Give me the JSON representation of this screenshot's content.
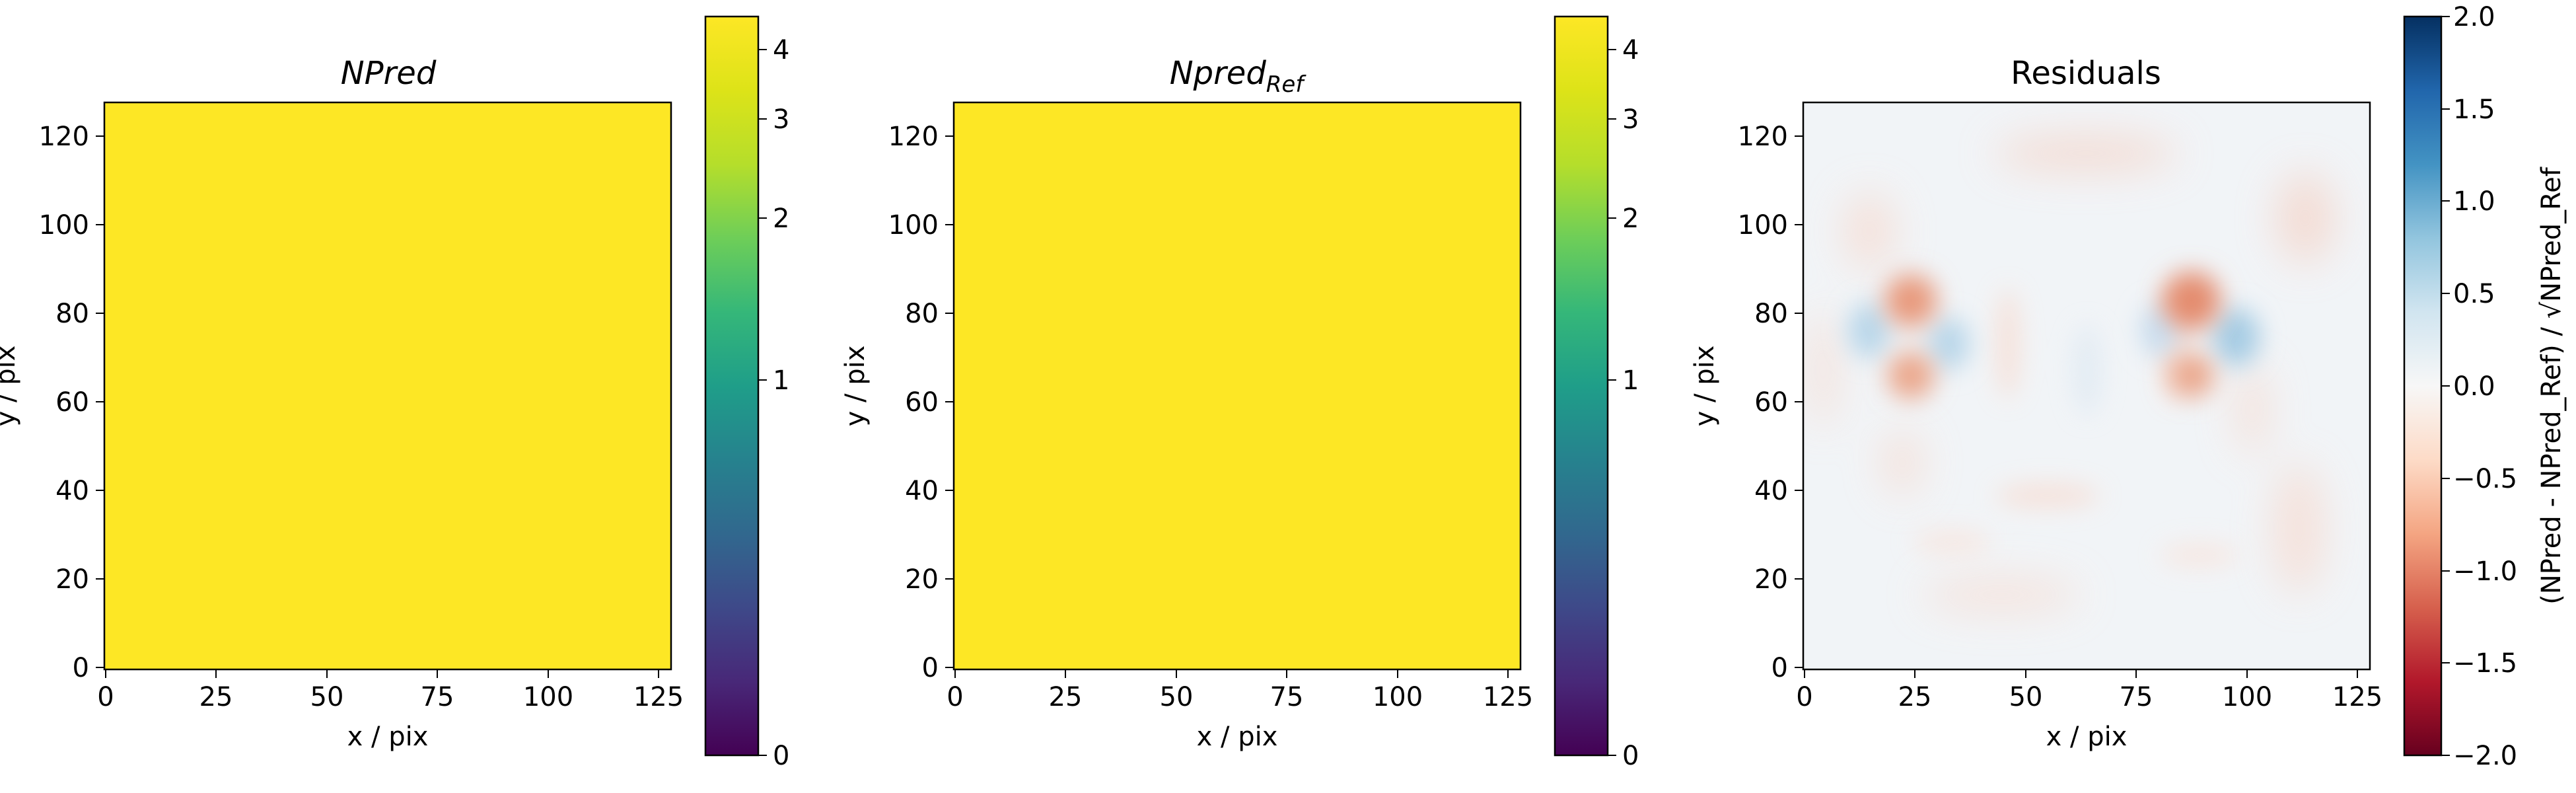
{
  "chart_data": [
    {
      "type": "heatmap",
      "title": "NPred",
      "xlabel": "x / pix",
      "ylabel": "y / pix",
      "xlim": [
        0,
        128
      ],
      "ylim": [
        0,
        128
      ],
      "xticks": [
        "0",
        "25",
        "50",
        "75",
        "100",
        "125"
      ],
      "yticks": [
        "0",
        "20",
        "40",
        "60",
        "80",
        "100",
        "120"
      ],
      "colormap": "viridis",
      "fill_color": "#fde725",
      "colorbar": {
        "ticks": [
          "0",
          "1",
          "2",
          "3",
          "4"
        ],
        "scale": "sqrt"
      }
    },
    {
      "type": "heatmap",
      "title": "Npred",
      "title_subscript": "Ref",
      "xlabel": "x / pix",
      "ylabel": "y / pix",
      "xlim": [
        0,
        128
      ],
      "ylim": [
        0,
        128
      ],
      "xticks": [
        "0",
        "25",
        "50",
        "75",
        "100",
        "125"
      ],
      "yticks": [
        "0",
        "20",
        "40",
        "60",
        "80",
        "100",
        "120"
      ],
      "colormap": "viridis",
      "fill_color": "#fde725",
      "colorbar": {
        "ticks": [
          "0",
          "1",
          "2",
          "3",
          "4"
        ],
        "scale": "sqrt"
      }
    },
    {
      "type": "heatmap",
      "title": "Residuals",
      "xlabel": "x / pix",
      "ylabel": "y / pix",
      "xlim": [
        0,
        128
      ],
      "ylim": [
        0,
        128
      ],
      "xticks": [
        "0",
        "25",
        "50",
        "75",
        "100",
        "125"
      ],
      "yticks": [
        "0",
        "20",
        "40",
        "60",
        "80",
        "100",
        "120"
      ],
      "colormap": "RdBu",
      "colorbar": {
        "ticks": [
          "−2.0",
          "−1.5",
          "−1.0",
          "−0.5",
          "0.0",
          "0.5",
          "1.0",
          "1.5",
          "2.0"
        ],
        "range": [
          -2.0,
          2.0
        ],
        "label": "(NPred - NPred_Ref) / √NPred_Ref"
      },
      "features": [
        {
          "x": 24,
          "y": 82,
          "value": -0.8
        },
        {
          "x": 24,
          "y": 65,
          "value": -0.7
        },
        {
          "x": 88,
          "y": 82,
          "value": -0.9
        },
        {
          "x": 88,
          "y": 65,
          "value": -0.7
        },
        {
          "x": 15,
          "y": 73,
          "value": 0.4
        },
        {
          "x": 33,
          "y": 73,
          "value": 0.4
        },
        {
          "x": 98,
          "y": 73,
          "value": 0.5
        },
        {
          "x": 80,
          "y": 73,
          "value": 0.3
        }
      ]
    }
  ]
}
